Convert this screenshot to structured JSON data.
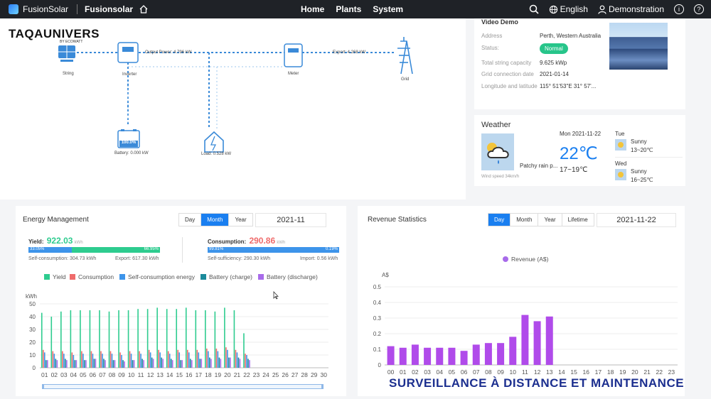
{
  "topbar": {
    "app_name": "FusionSolar",
    "site_name": "Fusionsolar",
    "nav": [
      "Home",
      "Plants",
      "System"
    ],
    "language": "English",
    "user": "Demonstration",
    "info_glyph": "i",
    "help_glyph": "?"
  },
  "watermark": {
    "brand": "TAQAUNIVERS",
    "sub": "BY ECOWATT"
  },
  "flow": {
    "string_label": "String",
    "inverter_label": "Inverter",
    "output_power": "Output Power: 4.796 kW",
    "meter_label": "Meter",
    "export": "Export: 4.268 kW",
    "grid_label": "Grid",
    "battery_pct": "100.0%",
    "battery_label": "Battery: 0.000 kW",
    "load_label": "Load: 0.528 kW"
  },
  "plant": {
    "name": "Video Demo",
    "address_label": "Address",
    "address": "Perth, Western Australia",
    "status_label": "Status:",
    "status": "Normal",
    "capacity_label": "Total string capacity",
    "capacity": "9.625 kWp",
    "grid_date_label": "Grid connection date",
    "grid_date": "2021-01-14",
    "coords_label": "Longitude and latitude",
    "coords": "115° 51'53\"E    31° 57'..."
  },
  "weather": {
    "title": "Weather",
    "condition": "Patchy rain p...",
    "wind": "Wind speed 34km/h",
    "day": "Mon  2021-11-22",
    "temp": "22℃",
    "range": "17~19℃",
    "forecast": [
      {
        "day": "Tue",
        "cond": "Sunny",
        "range": "13~20℃"
      },
      {
        "day": "Wed",
        "cond": "Sunny",
        "range": "16~25℃"
      }
    ]
  },
  "energy": {
    "title": "Energy Management",
    "tabs": [
      "Day",
      "Month",
      "Year"
    ],
    "active_tab": "Month",
    "date": "2021-11",
    "yield_label": "Yield:",
    "yield_value": "922.03",
    "yield_unit": "kWh",
    "yield_pct_left": "33.05%",
    "yield_pct_right": "66.95%",
    "self_consumption": "Self-consumption: 304.73 kWh",
    "export": "Export: 617.30 kWh",
    "consumption_label": "Consumption:",
    "consumption_value": "290.86",
    "consumption_unit": "kWh",
    "cons_pct_left": "99.81%",
    "cons_pct_right": "0.19%",
    "self_sufficiency": "Self-sufficiency: 290.30 kWh",
    "import": "Import: 0.56 kWh",
    "legend": [
      "Yield",
      "Consumption",
      "Self-consumption energy",
      "Battery (charge)",
      "Battery (discharge)"
    ],
    "colors": [
      "#2ecc8f",
      "#ef6b6b",
      "#3d94ea",
      "#1b8a9b",
      "#a86bea"
    ]
  },
  "revenue": {
    "title": "Revenue Statistics",
    "tabs": [
      "Day",
      "Month",
      "Year",
      "Lifetime"
    ],
    "active_tab": "Day",
    "date": "2021-11-22"
  },
  "banner": "SURVEILLANCE À DISTANCE ET MAINTENANCE",
  "chart_data": [
    {
      "type": "bar",
      "ylabel": "kWh",
      "ylim": [
        0,
        50
      ],
      "yticks": [
        0,
        10,
        20,
        30,
        40,
        50
      ],
      "categories": [
        "01",
        "02",
        "03",
        "04",
        "05",
        "06",
        "07",
        "08",
        "09",
        "10",
        "11",
        "12",
        "13",
        "14",
        "15",
        "16",
        "17",
        "18",
        "19",
        "20",
        "21",
        "22",
        "23",
        "24",
        "25",
        "26",
        "27",
        "28",
        "29",
        "30"
      ],
      "series": [
        {
          "name": "Yield",
          "values": [
            43,
            40,
            44,
            45,
            45,
            45,
            45,
            44,
            45,
            45,
            46,
            46,
            47,
            46,
            46,
            47,
            45,
            45,
            44,
            47,
            45,
            27,
            0,
            0,
            0,
            0,
            0,
            0,
            0,
            0
          ]
        },
        {
          "name": "Consumption",
          "values": [
            14,
            13,
            13,
            12,
            13,
            13,
            13,
            13,
            12,
            13,
            13,
            14,
            14,
            13,
            14,
            14,
            14,
            15,
            15,
            16,
            14,
            11,
            0,
            0,
            0,
            0,
            0,
            0,
            0,
            0
          ]
        },
        {
          "name": "Self-consumption energy",
          "values": [
            12,
            11,
            11,
            10,
            11,
            11,
            11,
            11,
            10,
            11,
            11,
            12,
            12,
            11,
            12,
            12,
            12,
            13,
            13,
            14,
            12,
            10,
            0,
            0,
            0,
            0,
            0,
            0,
            0,
            0
          ]
        },
        {
          "name": "Battery (charge)",
          "values": [
            6,
            7,
            7,
            6,
            6,
            7,
            7,
            6,
            6,
            6,
            7,
            8,
            8,
            7,
            6,
            7,
            7,
            8,
            8,
            8,
            8,
            7,
            0,
            0,
            0,
            0,
            0,
            0,
            0,
            0
          ]
        },
        {
          "name": "Battery (discharge)",
          "values": [
            6,
            6,
            6,
            6,
            6,
            7,
            6,
            6,
            5,
            6,
            6,
            7,
            7,
            6,
            6,
            6,
            7,
            7,
            7,
            8,
            7,
            6,
            0,
            0,
            0,
            0,
            0,
            0,
            0,
            0
          ]
        }
      ]
    },
    {
      "type": "bar",
      "legend": "Revenue (A$)",
      "ylabel": "A$",
      "ylim": [
        0,
        0.5
      ],
      "yticks": [
        "0",
        "0.1",
        "0.2",
        "0.3",
        "0.4",
        "0.5"
      ],
      "categories": [
        "00",
        "01",
        "02",
        "03",
        "04",
        "05",
        "06",
        "07",
        "08",
        "09",
        "10",
        "11",
        "12",
        "13",
        "14",
        "15",
        "16",
        "17",
        "18",
        "19",
        "20",
        "21",
        "22",
        "23"
      ],
      "values": [
        0.12,
        0.11,
        0.13,
        0.11,
        0.11,
        0.11,
        0.09,
        0.13,
        0.14,
        0.14,
        0.18,
        0.32,
        0.28,
        0.31,
        0,
        0,
        0,
        0,
        0,
        0,
        0,
        0,
        0,
        0
      ]
    }
  ]
}
